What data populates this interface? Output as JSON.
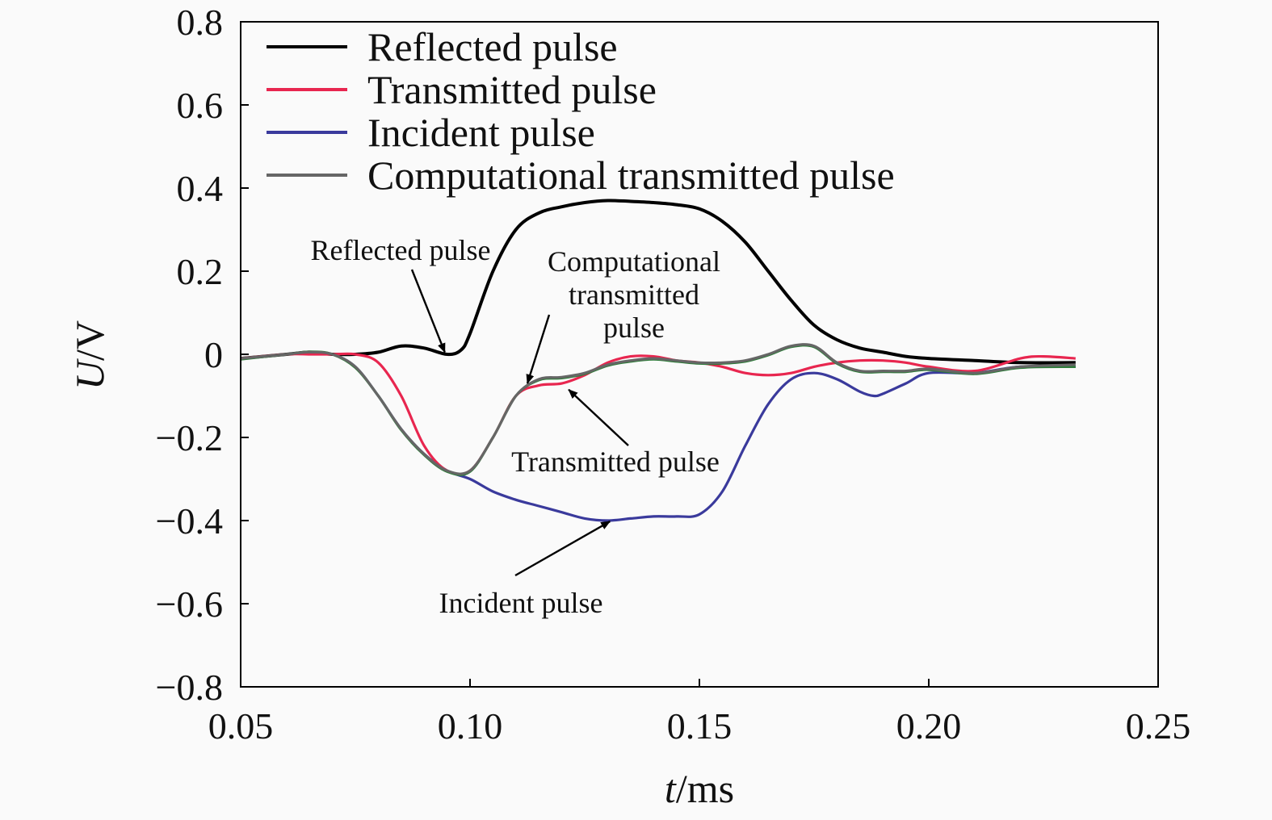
{
  "chart_data": {
    "type": "line",
    "xlabel": {
      "italic": "t",
      "unit": "/ms"
    },
    "ylabel": {
      "italic": "U",
      "unit": "/V"
    },
    "xlim": [
      0.05,
      0.25
    ],
    "ylim": [
      -0.8,
      0.8
    ],
    "xticks": [
      {
        "value": 0.05,
        "label": "0.05"
      },
      {
        "value": 0.1,
        "label": "0.10"
      },
      {
        "value": 0.15,
        "label": "0.15"
      },
      {
        "value": 0.2,
        "label": "0.20"
      },
      {
        "value": 0.25,
        "label": "0.25"
      }
    ],
    "yticks": [
      {
        "value": 0.8,
        "label": "0.8"
      },
      {
        "value": 0.6,
        "label": "0.6"
      },
      {
        "value": 0.4,
        "label": "0.4"
      },
      {
        "value": 0.2,
        "label": "0.2"
      },
      {
        "value": 0,
        "label": "0"
      },
      {
        "value": -0.2,
        "label": "−0.2"
      },
      {
        "value": -0.4,
        "label": "−0.4"
      },
      {
        "value": -0.6,
        "label": "−0.6"
      },
      {
        "value": -0.8,
        "label": "−0.8"
      }
    ],
    "grid": false,
    "legend_position": "top-left",
    "series": [
      {
        "name": "Reflected pulse",
        "color": "#000000",
        "x": [
          0.05,
          0.06,
          0.065,
          0.07,
          0.075,
          0.08,
          0.085,
          0.09,
          0.095,
          0.098,
          0.1,
          0.105,
          0.11,
          0.115,
          0.12,
          0.125,
          0.13,
          0.135,
          0.14,
          0.145,
          0.15,
          0.155,
          0.16,
          0.165,
          0.17,
          0.175,
          0.18,
          0.185,
          0.19,
          0.195,
          0.2,
          0.21,
          0.22,
          0.232
        ],
        "y": [
          -0.01,
          0.0,
          0.005,
          0.0,
          0.0,
          0.005,
          0.02,
          0.015,
          0.0,
          0.01,
          0.05,
          0.2,
          0.3,
          0.34,
          0.355,
          0.365,
          0.37,
          0.368,
          0.365,
          0.36,
          0.35,
          0.32,
          0.27,
          0.2,
          0.13,
          0.07,
          0.035,
          0.015,
          0.005,
          -0.005,
          -0.01,
          -0.015,
          -0.02,
          -0.02
        ]
      },
      {
        "name": "Transmitted pulse",
        "color": "#e8264f",
        "x": [
          0.05,
          0.06,
          0.065,
          0.07,
          0.075,
          0.08,
          0.085,
          0.09,
          0.095,
          0.1,
          0.105,
          0.11,
          0.115,
          0.12,
          0.125,
          0.13,
          0.135,
          0.14,
          0.145,
          0.15,
          0.155,
          0.16,
          0.165,
          0.17,
          0.175,
          0.18,
          0.185,
          0.19,
          0.195,
          0.2,
          0.21,
          0.22,
          0.225,
          0.232
        ],
        "y": [
          -0.01,
          0.0,
          0.0,
          0.0,
          0.0,
          -0.02,
          -0.1,
          -0.22,
          -0.28,
          -0.28,
          -0.2,
          -0.1,
          -0.075,
          -0.07,
          -0.05,
          -0.02,
          -0.005,
          -0.005,
          -0.015,
          -0.02,
          -0.03,
          -0.045,
          -0.05,
          -0.045,
          -0.03,
          -0.02,
          -0.015,
          -0.015,
          -0.02,
          -0.03,
          -0.04,
          -0.01,
          -0.005,
          -0.01
        ]
      },
      {
        "name": "Incident pulse",
        "color": "#3a3a9c",
        "x": [
          0.05,
          0.06,
          0.065,
          0.07,
          0.075,
          0.08,
          0.085,
          0.09,
          0.095,
          0.1,
          0.105,
          0.11,
          0.115,
          0.12,
          0.125,
          0.13,
          0.135,
          0.14,
          0.145,
          0.15,
          0.155,
          0.16,
          0.165,
          0.17,
          0.175,
          0.18,
          0.185,
          0.188,
          0.19,
          0.195,
          0.2,
          0.21,
          0.22,
          0.232
        ],
        "y": [
          -0.01,
          0.0,
          0.005,
          0.0,
          -0.03,
          -0.1,
          -0.18,
          -0.24,
          -0.28,
          -0.3,
          -0.33,
          -0.35,
          -0.365,
          -0.38,
          -0.395,
          -0.4,
          -0.395,
          -0.39,
          -0.39,
          -0.385,
          -0.33,
          -0.22,
          -0.12,
          -0.06,
          -0.045,
          -0.06,
          -0.09,
          -0.1,
          -0.095,
          -0.07,
          -0.045,
          -0.045,
          -0.03,
          -0.03
        ]
      },
      {
        "name": "Computational transmitted pulse",
        "color": "#666666",
        "x": [
          0.05,
          0.06,
          0.065,
          0.07,
          0.075,
          0.08,
          0.085,
          0.09,
          0.095,
          0.1,
          0.105,
          0.11,
          0.115,
          0.12,
          0.125,
          0.13,
          0.135,
          0.14,
          0.145,
          0.15,
          0.155,
          0.16,
          0.165,
          0.17,
          0.175,
          0.18,
          0.185,
          0.19,
          0.195,
          0.2,
          0.21,
          0.22,
          0.232
        ],
        "y": [
          -0.01,
          0.0,
          0.005,
          0.0,
          -0.03,
          -0.1,
          -0.18,
          -0.24,
          -0.28,
          -0.28,
          -0.2,
          -0.1,
          -0.06,
          -0.055,
          -0.045,
          -0.025,
          -0.015,
          -0.01,
          -0.015,
          -0.02,
          -0.02,
          -0.015,
          0.0,
          0.02,
          0.02,
          -0.02,
          -0.04,
          -0.04,
          -0.04,
          -0.035,
          -0.045,
          -0.03,
          -0.025
        ]
      },
      {
        "name": "",
        "color": "#2e7d3a",
        "x": [
          0.05,
          0.06,
          0.065,
          0.07,
          0.075,
          0.08,
          0.085,
          0.09,
          0.095,
          0.1,
          0.105,
          0.11,
          0.115,
          0.12,
          0.125,
          0.13,
          0.135,
          0.14,
          0.145,
          0.15,
          0.155,
          0.16,
          0.165,
          0.17,
          0.175,
          0.18,
          0.185,
          0.19,
          0.195,
          0.2,
          0.21,
          0.22,
          0.232
        ],
        "y": [
          -0.012,
          0.0,
          0.006,
          0.0,
          -0.032,
          -0.1,
          -0.182,
          -0.242,
          -0.282,
          -0.282,
          -0.2,
          -0.1,
          -0.062,
          -0.057,
          -0.047,
          -0.027,
          -0.017,
          -0.012,
          -0.017,
          -0.022,
          -0.022,
          -0.017,
          -0.002,
          0.018,
          0.018,
          -0.022,
          -0.042,
          -0.042,
          -0.042,
          -0.037,
          -0.047,
          -0.032,
          -0.03
        ]
      }
    ],
    "annotations": [
      {
        "lines": [
          "Reflected pulse"
        ],
        "point": [
          0.0945,
          0.005
        ]
      },
      {
        "lines": [
          "Computational",
          "transmitted",
          "pulse"
        ],
        "point": [
          0.1125,
          -0.07
        ]
      },
      {
        "lines": [
          "Transmitted pulse"
        ],
        "point": [
          0.1215,
          -0.085
        ]
      },
      {
        "lines": [
          "Incident pulse"
        ],
        "point": [
          0.1305,
          -0.402
        ]
      }
    ]
  }
}
